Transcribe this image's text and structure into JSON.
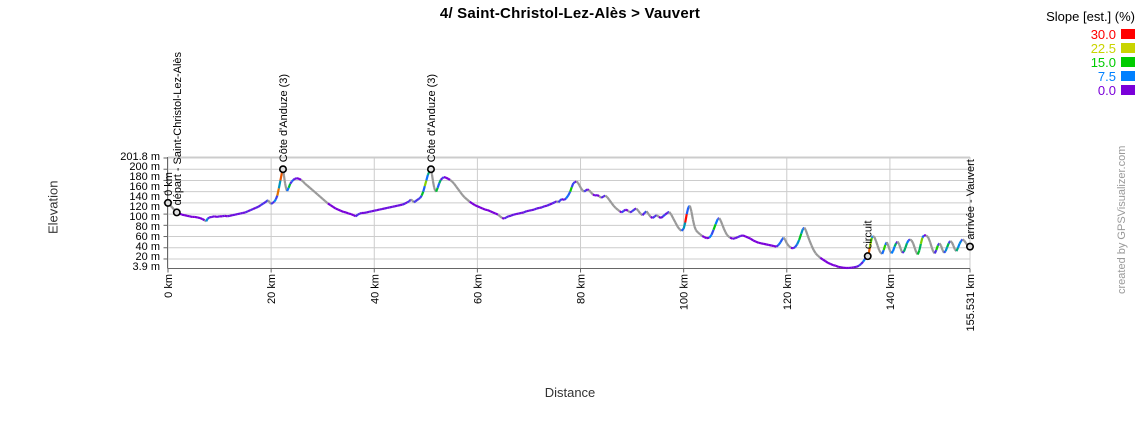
{
  "title": "4/ Saint-Christol-Lez-Alès > Vauvert",
  "watermark": "created by GPSVisualizer.com",
  "axes": {
    "x_label": "Distance",
    "y_label": "Elevation"
  },
  "legend": {
    "title": "Slope [est.] (%)",
    "entries": [
      {
        "label": "30.0",
        "color": "#ff0000"
      },
      {
        "label": "22.5",
        "color": "#c9d400"
      },
      {
        "label": "15.0",
        "color": "#00cc00"
      },
      {
        "label": "7.5",
        "color": "#0080ff"
      },
      {
        "label": "0.0",
        "color": "#7a00d9"
      }
    ]
  },
  "chart_data": {
    "type": "line",
    "title": "4/ Saint-Christol-Lez-Alès > Vauvert",
    "xlabel": "Distance",
    "ylabel": "Elevation",
    "x_unit": "km",
    "y_unit": "m",
    "xlim": [
      0,
      155.531
    ],
    "ylim": [
      3.9,
      201.8
    ],
    "grid": true,
    "legend_position": "top-right",
    "x_ticks": [
      {
        "value": 0,
        "label": "0 km"
      },
      {
        "value": 20,
        "label": "20 km"
      },
      {
        "value": 40,
        "label": "40 km"
      },
      {
        "value": 60,
        "label": "60 km"
      },
      {
        "value": 80,
        "label": "80 km"
      },
      {
        "value": 100,
        "label": "100 km"
      },
      {
        "value": 120,
        "label": "120 km"
      },
      {
        "value": 140,
        "label": "140 km"
      },
      {
        "value": 155.531,
        "label": "155.531 km"
      }
    ],
    "y_tick_labels": [
      "201.8 m",
      "200 m",
      "180 m",
      "160 m",
      "140 m",
      "120 m",
      "100 m",
      "80 m",
      "60 m",
      "40 m",
      "20 m",
      "3.9 m"
    ],
    "y_gridline_values": [
      20,
      40,
      60,
      80,
      100,
      120,
      140,
      160,
      180,
      200
    ],
    "slope_color_stops": [
      [
        0,
        "#7a00d9"
      ],
      [
        7.5,
        "#0080ff"
      ],
      [
        15,
        "#00cc00"
      ],
      [
        22.5,
        "#c9d400"
      ],
      [
        30,
        "#ff0000"
      ]
    ],
    "descent_color": "#999999",
    "waypoints": [
      {
        "km": 0,
        "elev": 120,
        "label": "0 km"
      },
      {
        "km": 1.7,
        "elev": 103,
        "label": "départ - Saint-Christol-Lez-Alès"
      },
      {
        "km": 22.3,
        "elev": 180,
        "label": "Côte d'Anduze (3)"
      },
      {
        "km": 51.0,
        "elev": 180,
        "label": "Côte d'Anduze (3)"
      },
      {
        "km": 135.7,
        "elev": 25,
        "label": "circuit"
      },
      {
        "km": 155.531,
        "elev": 42,
        "label": "arrivée - Vauvert"
      }
    ],
    "profile_km_m": [
      [
        0,
        120
      ],
      [
        0.4,
        116
      ],
      [
        0.8,
        112
      ],
      [
        1.2,
        108
      ],
      [
        1.7,
        103
      ],
      [
        2.2,
        101
      ],
      [
        2.7,
        99
      ],
      [
        3.2,
        98
      ],
      [
        3.7,
        97
      ],
      [
        4.2,
        96
      ],
      [
        4.7,
        95
      ],
      [
        5.2,
        95
      ],
      [
        5.7,
        94
      ],
      [
        6.2,
        93
      ],
      [
        6.7,
        91
      ],
      [
        7.1,
        89
      ],
      [
        7.4,
        87
      ],
      [
        7.7,
        92
      ],
      [
        8,
        94
      ],
      [
        8.5,
        95
      ],
      [
        9,
        96
      ],
      [
        9.5,
        95
      ],
      [
        10,
        96
      ],
      [
        10.5,
        96
      ],
      [
        11,
        97
      ],
      [
        11.5,
        96
      ],
      [
        12,
        97
      ],
      [
        12.5,
        98
      ],
      [
        13,
        99
      ],
      [
        13.5,
        100
      ],
      [
        14,
        101
      ],
      [
        14.5,
        102
      ],
      [
        15,
        103
      ],
      [
        15.5,
        105
      ],
      [
        16,
        107
      ],
      [
        16.5,
        109
      ],
      [
        17,
        111
      ],
      [
        17.5,
        113
      ],
      [
        18,
        116
      ],
      [
        18.5,
        119
      ],
      [
        19,
        122
      ],
      [
        19.4,
        125
      ],
      [
        19.7,
        121
      ],
      [
        20,
        118
      ],
      [
        20.3,
        120
      ],
      [
        20.6,
        122
      ],
      [
        20.9,
        126
      ],
      [
        21.2,
        133
      ],
      [
        21.5,
        146
      ],
      [
        21.8,
        160
      ],
      [
        22.1,
        174
      ],
      [
        22.3,
        180
      ],
      [
        22.5,
        168
      ],
      [
        22.7,
        155
      ],
      [
        22.9,
        146
      ],
      [
        23.1,
        141
      ],
      [
        23.4,
        147
      ],
      [
        23.7,
        154
      ],
      [
        24,
        158
      ],
      [
        24.3,
        161
      ],
      [
        24.6,
        163
      ],
      [
        25,
        164
      ],
      [
        25.4,
        163
      ],
      [
        25.8,
        161
      ],
      [
        26.2,
        158
      ],
      [
        26.6,
        154
      ],
      [
        27,
        151
      ],
      [
        27.5,
        147
      ],
      [
        28,
        143
      ],
      [
        28.5,
        139
      ],
      [
        29,
        135
      ],
      [
        29.5,
        131
      ],
      [
        30,
        127
      ],
      [
        30.5,
        123
      ],
      [
        31,
        119
      ],
      [
        31.5,
        116
      ],
      [
        32,
        113
      ],
      [
        32.5,
        110
      ],
      [
        33,
        108
      ],
      [
        33.5,
        106
      ],
      [
        34,
        104
      ],
      [
        34.5,
        103
      ],
      [
        35,
        101
      ],
      [
        35.5,
        100
      ],
      [
        36,
        98
      ],
      [
        36.4,
        96
      ],
      [
        36.8,
        99
      ],
      [
        37.2,
        101
      ],
      [
        37.6,
        102
      ],
      [
        38,
        102
      ],
      [
        38.5,
        103
      ],
      [
        39,
        104
      ],
      [
        39.5,
        105
      ],
      [
        40,
        106
      ],
      [
        40.5,
        107
      ],
      [
        41,
        108
      ],
      [
        41.5,
        109
      ],
      [
        42,
        110
      ],
      [
        42.5,
        111
      ],
      [
        43,
        112
      ],
      [
        43.5,
        113
      ],
      [
        44,
        114
      ],
      [
        44.5,
        115
      ],
      [
        45,
        116
      ],
      [
        45.5,
        117
      ],
      [
        46,
        119
      ],
      [
        46.4,
        121
      ],
      [
        46.8,
        123
      ],
      [
        47.1,
        126
      ],
      [
        47.4,
        124
      ],
      [
        47.7,
        121
      ],
      [
        48,
        123
      ],
      [
        48.3,
        125
      ],
      [
        48.6,
        127
      ],
      [
        48.9,
        129
      ],
      [
        49.2,
        133
      ],
      [
        49.5,
        140
      ],
      [
        49.8,
        150
      ],
      [
        50.1,
        160
      ],
      [
        50.4,
        170
      ],
      [
        50.7,
        176
      ],
      [
        51,
        180
      ],
      [
        51.2,
        170
      ],
      [
        51.4,
        158
      ],
      [
        51.6,
        148
      ],
      [
        51.8,
        142
      ],
      [
        52,
        140
      ],
      [
        52.3,
        147
      ],
      [
        52.6,
        155
      ],
      [
        52.9,
        161
      ],
      [
        53.2,
        164
      ],
      [
        53.5,
        166
      ],
      [
        53.9,
        165
      ],
      [
        54.3,
        163
      ],
      [
        54.7,
        161
      ],
      [
        55.1,
        158
      ],
      [
        55.5,
        154
      ],
      [
        55.9,
        149
      ],
      [
        56.3,
        144
      ],
      [
        56.7,
        139
      ],
      [
        57.1,
        134
      ],
      [
        57.5,
        130
      ],
      [
        58,
        126
      ],
      [
        58.5,
        122
      ],
      [
        59,
        119
      ],
      [
        59.5,
        116
      ],
      [
        60,
        114
      ],
      [
        60.5,
        112
      ],
      [
        61,
        110
      ],
      [
        61.5,
        108
      ],
      [
        62,
        107
      ],
      [
        62.5,
        105
      ],
      [
        63,
        103
      ],
      [
        63.5,
        101
      ],
      [
        64,
        99
      ],
      [
        64.4,
        96
      ],
      [
        64.8,
        93
      ],
      [
        65.2,
        92
      ],
      [
        65.6,
        94
      ],
      [
        66,
        96
      ],
      [
        66.5,
        97
      ],
      [
        67,
        99
      ],
      [
        67.5,
        100
      ],
      [
        68,
        101
      ],
      [
        68.5,
        102
      ],
      [
        69,
        103
      ],
      [
        69.5,
        105
      ],
      [
        70,
        106
      ],
      [
        70.5,
        107
      ],
      [
        71,
        108
      ],
      [
        71.5,
        110
      ],
      [
        72,
        111
      ],
      [
        72.5,
        112
      ],
      [
        73,
        114
      ],
      [
        73.5,
        115
      ],
      [
        74,
        117
      ],
      [
        74.5,
        119
      ],
      [
        75,
        121
      ],
      [
        75.4,
        123
      ],
      [
        75.7,
        121
      ],
      [
        76,
        124
      ],
      [
        76.4,
        127
      ],
      [
        76.8,
        125
      ],
      [
        77.2,
        128
      ],
      [
        77.6,
        133
      ],
      [
        78,
        140
      ],
      [
        78.3,
        148
      ],
      [
        78.6,
        155
      ],
      [
        78.9,
        157
      ],
      [
        79.2,
        158
      ],
      [
        79.5,
        156
      ],
      [
        79.8,
        151
      ],
      [
        80.1,
        146
      ],
      [
        80.4,
        142
      ],
      [
        80.7,
        140
      ],
      [
        81,
        142
      ],
      [
        81.3,
        144
      ],
      [
        81.6,
        143
      ],
      [
        82,
        139
      ],
      [
        82.4,
        135
      ],
      [
        82.8,
        133
      ],
      [
        83.2,
        134
      ],
      [
        83.6,
        132
      ],
      [
        84,
        129
      ],
      [
        84.4,
        131
      ],
      [
        84.8,
        133
      ],
      [
        85.2,
        130
      ],
      [
        85.6,
        125
      ],
      [
        86,
        120
      ],
      [
        86.4,
        115
      ],
      [
        86.8,
        111
      ],
      [
        87.2,
        108
      ],
      [
        87.6,
        105
      ],
      [
        88,
        103
      ],
      [
        88.4,
        106
      ],
      [
        88.8,
        108
      ],
      [
        89.2,
        106
      ],
      [
        89.6,
        103
      ],
      [
        90,
        105
      ],
      [
        90.4,
        108
      ],
      [
        90.8,
        110
      ],
      [
        91.2,
        106
      ],
      [
        91.6,
        101
      ],
      [
        92,
        98
      ],
      [
        92.4,
        102
      ],
      [
        92.8,
        105
      ],
      [
        93.2,
        100
      ],
      [
        93.6,
        95
      ],
      [
        94,
        93
      ],
      [
        94.4,
        96
      ],
      [
        94.8,
        98
      ],
      [
        95.2,
        95
      ],
      [
        95.6,
        93
      ],
      [
        96,
        96
      ],
      [
        96.4,
        99
      ],
      [
        96.8,
        102
      ],
      [
        97.2,
        104
      ],
      [
        97.6,
        99
      ],
      [
        98,
        92
      ],
      [
        98.4,
        85
      ],
      [
        98.8,
        78
      ],
      [
        99.2,
        73
      ],
      [
        99.6,
        70
      ],
      [
        100,
        74
      ],
      [
        100.3,
        85
      ],
      [
        100.6,
        100
      ],
      [
        100.9,
        112
      ],
      [
        101.2,
        115
      ],
      [
        101.5,
        105
      ],
      [
        101.8,
        90
      ],
      [
        102.1,
        78
      ],
      [
        102.4,
        71
      ],
      [
        102.8,
        67
      ],
      [
        103.2,
        64
      ],
      [
        103.6,
        61
      ],
      [
        104,
        59
      ],
      [
        104.5,
        57
      ],
      [
        105,
        58
      ],
      [
        105.4,
        63
      ],
      [
        105.8,
        72
      ],
      [
        106.2,
        82
      ],
      [
        106.6,
        91
      ],
      [
        106.9,
        93
      ],
      [
        107.2,
        88
      ],
      [
        107.5,
        81
      ],
      [
        107.8,
        74
      ],
      [
        108.1,
        68
      ],
      [
        108.4,
        63
      ],
      [
        108.7,
        60
      ],
      [
        109,
        58
      ],
      [
        109.5,
        56
      ],
      [
        110,
        57
      ],
      [
        110.5,
        59
      ],
      [
        111,
        61
      ],
      [
        111.5,
        62
      ],
      [
        112,
        60
      ],
      [
        112.5,
        58
      ],
      [
        113,
        56
      ],
      [
        113.5,
        53
      ],
      [
        114,
        51
      ],
      [
        114.5,
        49
      ],
      [
        115,
        48
      ],
      [
        115.5,
        47
      ],
      [
        116,
        46
      ],
      [
        116.5,
        45
      ],
      [
        117,
        44
      ],
      [
        117.5,
        43
      ],
      [
        118,
        42
      ],
      [
        118.4,
        45
      ],
      [
        118.8,
        50
      ],
      [
        119.1,
        55
      ],
      [
        119.4,
        58
      ],
      [
        119.7,
        54
      ],
      [
        120,
        48
      ],
      [
        120.4,
        43
      ],
      [
        120.8,
        40
      ],
      [
        121.2,
        39
      ],
      [
        121.6,
        41
      ],
      [
        122,
        46
      ],
      [
        122.4,
        54
      ],
      [
        122.8,
        65
      ],
      [
        123.1,
        73
      ],
      [
        123.4,
        76
      ],
      [
        123.7,
        71
      ],
      [
        124,
        63
      ],
      [
        124.4,
        53
      ],
      [
        124.8,
        44
      ],
      [
        125.2,
        36
      ],
      [
        125.6,
        30
      ],
      [
        126,
        26
      ],
      [
        126.5,
        22
      ],
      [
        127,
        19
      ],
      [
        127.5,
        16
      ],
      [
        128,
        13
      ],
      [
        128.5,
        11
      ],
      [
        129,
        9
      ],
      [
        129.5,
        8
      ],
      [
        130,
        6
      ],
      [
        130.5,
        5
      ],
      [
        131,
        4.5
      ],
      [
        131.5,
        4
      ],
      [
        132,
        4
      ],
      [
        132.5,
        4.5
      ],
      [
        133,
        5
      ],
      [
        133.5,
        6
      ],
      [
        134,
        8
      ],
      [
        134.4,
        11
      ],
      [
        134.8,
        15
      ],
      [
        135.1,
        19
      ],
      [
        135.4,
        23
      ],
      [
        135.7,
        25
      ],
      [
        135.9,
        30
      ],
      [
        136.1,
        40
      ],
      [
        136.3,
        50
      ],
      [
        136.5,
        58
      ],
      [
        136.7,
        61
      ],
      [
        137,
        59
      ],
      [
        137.3,
        52
      ],
      [
        137.6,
        44
      ],
      [
        137.9,
        36
      ],
      [
        138.2,
        31
      ],
      [
        138.5,
        29
      ],
      [
        138.8,
        36
      ],
      [
        139.1,
        45
      ],
      [
        139.4,
        50
      ],
      [
        139.7,
        43
      ],
      [
        140,
        35
      ],
      [
        140.3,
        30
      ],
      [
        140.6,
        34
      ],
      [
        140.9,
        42
      ],
      [
        141.2,
        48
      ],
      [
        141.5,
        51
      ],
      [
        141.8,
        46
      ],
      [
        142.1,
        38
      ],
      [
        142.4,
        31
      ],
      [
        142.7,
        33
      ],
      [
        143,
        40
      ],
      [
        143.3,
        48
      ],
      [
        143.6,
        53
      ],
      [
        143.9,
        55
      ],
      [
        144.2,
        53
      ],
      [
        144.5,
        48
      ],
      [
        144.8,
        40
      ],
      [
        145.1,
        32
      ],
      [
        145.4,
        28
      ],
      [
        145.7,
        35
      ],
      [
        146,
        47
      ],
      [
        146.3,
        58
      ],
      [
        146.6,
        62
      ],
      [
        147,
        62
      ],
      [
        147.4,
        59
      ],
      [
        147.8,
        50
      ],
      [
        148.1,
        41
      ],
      [
        148.4,
        33
      ],
      [
        148.7,
        30
      ],
      [
        149,
        36
      ],
      [
        149.3,
        44
      ],
      [
        149.6,
        48
      ],
      [
        149.9,
        44
      ],
      [
        150.2,
        36
      ],
      [
        150.5,
        31
      ],
      [
        150.8,
        34
      ],
      [
        151.1,
        41
      ],
      [
        151.4,
        48
      ],
      [
        151.7,
        52
      ],
      [
        152,
        50
      ],
      [
        152.3,
        44
      ],
      [
        152.6,
        37
      ],
      [
        152.9,
        34
      ],
      [
        153.2,
        40
      ],
      [
        153.5,
        47
      ],
      [
        153.8,
        52
      ],
      [
        154.1,
        55
      ],
      [
        154.4,
        53
      ],
      [
        154.7,
        49
      ],
      [
        155,
        45
      ],
      [
        155.3,
        43
      ],
      [
        155.531,
        42
      ]
    ]
  }
}
